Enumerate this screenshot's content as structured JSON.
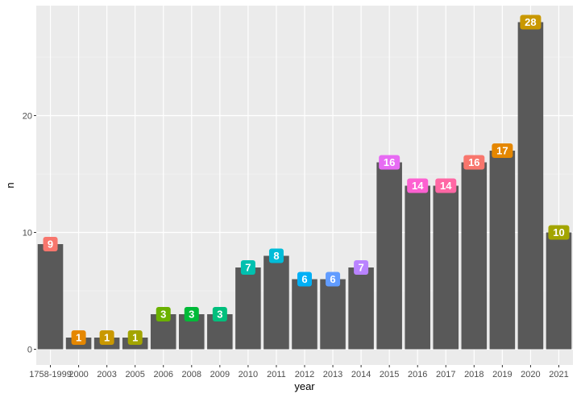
{
  "chart_data": {
    "type": "bar",
    "xlabel": "year",
    "ylabel": "n",
    "ylim": [
      0,
      28.5
    ],
    "yticks": [
      0,
      10,
      20
    ],
    "grid": true,
    "bar_color": "#595959",
    "panel_background": "#ebebeb",
    "categories": [
      "1758-1999",
      "2000",
      "2003",
      "2005",
      "2006",
      "2008",
      "2009",
      "2010",
      "2011",
      "2012",
      "2013",
      "2014",
      "2015",
      "2016",
      "2017",
      "2018",
      "2019",
      "2020",
      "2021"
    ],
    "values": [
      9,
      1,
      1,
      1,
      3,
      3,
      3,
      7,
      8,
      6,
      6,
      7,
      16,
      14,
      14,
      16,
      17,
      28,
      10
    ],
    "data_labels": [
      "9",
      "1",
      "1",
      "1",
      "3",
      "3",
      "3",
      "7",
      "8",
      "6",
      "6",
      "7",
      "16",
      "14",
      "14",
      "16",
      "17",
      "28",
      "10"
    ],
    "label_colors": [
      "#F8766D",
      "#E58700",
      "#C99800",
      "#A3A500",
      "#6BB100",
      "#00BA38",
      "#00BF7D",
      "#00C0AF",
      "#00BCD8",
      "#00B0F6",
      "#619CFF",
      "#B983FF",
      "#E76BF3",
      "#FD61D1",
      "#FF67A4"
    ]
  }
}
